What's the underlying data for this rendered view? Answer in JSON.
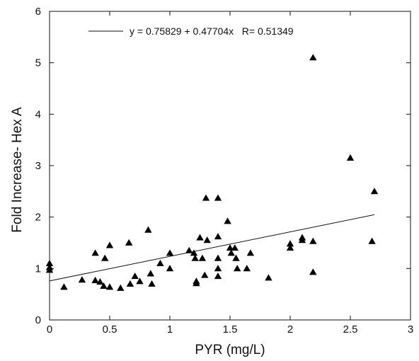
{
  "chart_data": {
    "type": "scatter",
    "xlabel": "PYR (mg/L)",
    "ylabel": "Fold Increase- Hex A",
    "xlim": [
      0,
      3
    ],
    "ylim": [
      0,
      6
    ],
    "xticks": [
      "0",
      "0.5",
      "1",
      "1.5",
      "2",
      "2.5",
      "3"
    ],
    "yticks": [
      "0",
      "1",
      "2",
      "3",
      "4",
      "5",
      "6"
    ],
    "grid": false,
    "marker": "filled-triangle",
    "legend": {
      "placement": "top-left",
      "text": "y = 0.75829 + 0.47704x   R= 0.51349"
    },
    "fit": {
      "intercept": 0.75829,
      "slope": 0.47704,
      "r": 0.51349,
      "x_range": [
        0,
        2.7
      ]
    },
    "series": [
      {
        "points": [
          {
            "x": 0.0,
            "y": 1.1
          },
          {
            "x": 0.0,
            "y": 1.02
          },
          {
            "x": 0.0,
            "y": 0.97
          },
          {
            "x": 0.12,
            "y": 0.64
          },
          {
            "x": 0.27,
            "y": 0.78
          },
          {
            "x": 0.38,
            "y": 1.3
          },
          {
            "x": 0.38,
            "y": 0.77
          },
          {
            "x": 0.42,
            "y": 0.74
          },
          {
            "x": 0.45,
            "y": 0.66
          },
          {
            "x": 0.46,
            "y": 1.2
          },
          {
            "x": 0.5,
            "y": 1.45
          },
          {
            "x": 0.5,
            "y": 0.64
          },
          {
            "x": 0.59,
            "y": 0.62
          },
          {
            "x": 0.66,
            "y": 1.5
          },
          {
            "x": 0.67,
            "y": 0.7
          },
          {
            "x": 0.71,
            "y": 0.85
          },
          {
            "x": 0.75,
            "y": 0.75
          },
          {
            "x": 0.82,
            "y": 1.75
          },
          {
            "x": 0.84,
            "y": 0.9
          },
          {
            "x": 0.85,
            "y": 0.7
          },
          {
            "x": 0.92,
            "y": 1.1
          },
          {
            "x": 1.0,
            "y": 1.3
          },
          {
            "x": 1.0,
            "y": 1.0
          },
          {
            "x": 1.16,
            "y": 1.35
          },
          {
            "x": 1.2,
            "y": 1.3
          },
          {
            "x": 1.21,
            "y": 1.2
          },
          {
            "x": 1.22,
            "y": 0.75
          },
          {
            "x": 1.22,
            "y": 0.71
          },
          {
            "x": 1.25,
            "y": 1.6
          },
          {
            "x": 1.27,
            "y": 1.2
          },
          {
            "x": 1.29,
            "y": 0.87
          },
          {
            "x": 1.3,
            "y": 2.37
          },
          {
            "x": 1.31,
            "y": 1.55
          },
          {
            "x": 1.4,
            "y": 2.37
          },
          {
            "x": 1.4,
            "y": 1.62
          },
          {
            "x": 1.4,
            "y": 1.2
          },
          {
            "x": 1.4,
            "y": 1.0
          },
          {
            "x": 1.4,
            "y": 0.85
          },
          {
            "x": 1.48,
            "y": 1.92
          },
          {
            "x": 1.5,
            "y": 1.4
          },
          {
            "x": 1.51,
            "y": 1.3
          },
          {
            "x": 1.54,
            "y": 1.4
          },
          {
            "x": 1.55,
            "y": 1.2
          },
          {
            "x": 1.56,
            "y": 1.0
          },
          {
            "x": 1.64,
            "y": 1.0
          },
          {
            "x": 1.67,
            "y": 1.3
          },
          {
            "x": 1.82,
            "y": 0.82
          },
          {
            "x": 2.0,
            "y": 1.48
          },
          {
            "x": 2.0,
            "y": 1.4
          },
          {
            "x": 2.1,
            "y": 1.6
          },
          {
            "x": 2.1,
            "y": 1.55
          },
          {
            "x": 2.19,
            "y": 5.1
          },
          {
            "x": 2.19,
            "y": 1.53
          },
          {
            "x": 2.19,
            "y": 0.93
          },
          {
            "x": 2.5,
            "y": 3.15
          },
          {
            "x": 2.68,
            "y": 1.53
          },
          {
            "x": 2.7,
            "y": 2.5
          }
        ]
      }
    ]
  }
}
